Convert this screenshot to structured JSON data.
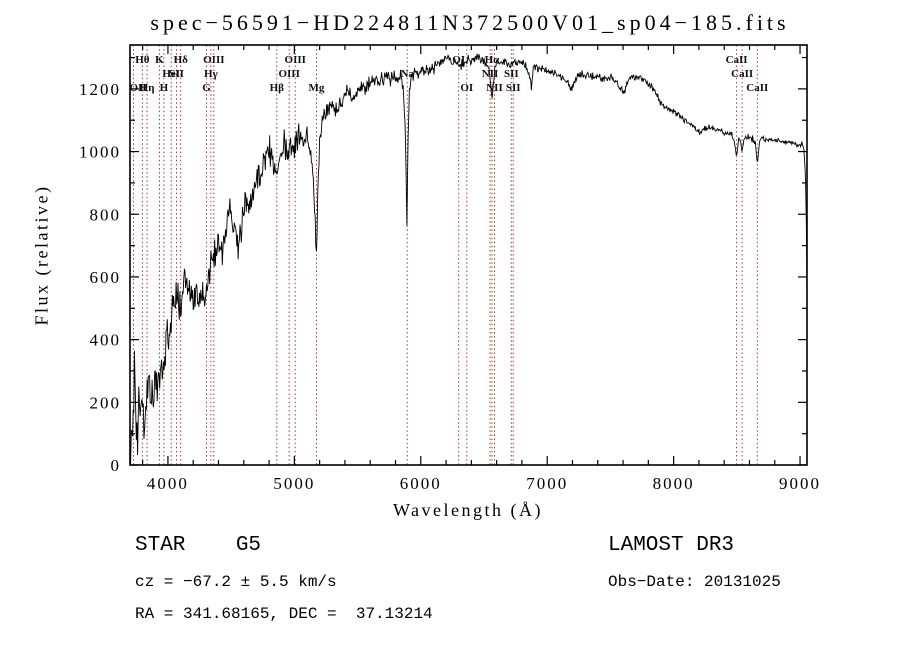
{
  "title": "spec−56591−HD224811N372500V01_sp04−185.fits",
  "footer": {
    "left": {
      "class_line": "STAR    G5",
      "cz_line": "cz = −67.2 ± 5.5 km/s",
      "radec_line": "RA = 341.68165, DEC =  37.13214"
    },
    "right": {
      "survey": "LAMOST DR3",
      "obs_date": "Obs−Date: 20131025"
    }
  },
  "chart_data": {
    "type": "line",
    "title": "spec−56591−HD224811N372500V01_sp04−185.fits",
    "xlabel": "Wavelength (Å)",
    "ylabel": "Flux (relative)",
    "xlim": [
      3700,
      9055
    ],
    "ylim": [
      0,
      1340
    ],
    "xticks": [
      4000,
      5000,
      6000,
      7000,
      8000,
      9000
    ],
    "x_minor_step": 200,
    "yticks": [
      0,
      200,
      400,
      600,
      800,
      1000,
      1200
    ],
    "y_minor_step": 100,
    "grid": false,
    "legend": "none",
    "series_color": "#000000",
    "line_marker_color": "#a03c34",
    "spectral_lines": [
      {
        "wavelength": 3727,
        "label": "OII",
        "row": 3
      },
      {
        "wavelength": 3798,
        "label": "Hθ",
        "row": 1
      },
      {
        "wavelength": 3835,
        "label": "Hη",
        "row": 3
      },
      {
        "wavelength": 3933,
        "label": "K",
        "row": 1
      },
      {
        "wavelength": 3968,
        "label": "H",
        "row": 3
      },
      {
        "wavelength": 4026,
        "label": "HeI",
        "row": 2
      },
      {
        "wavelength": 4068,
        "label": "SII",
        "row": 2
      },
      {
        "wavelength": 4101,
        "label": "Hδ",
        "row": 1
      },
      {
        "wavelength": 4305,
        "label": "G",
        "row": 3
      },
      {
        "wavelength": 4340,
        "label": "Hγ",
        "row": 2
      },
      {
        "wavelength": 4363,
        "label": "OIII",
        "row": 1
      },
      {
        "wavelength": 4861,
        "label": "Hβ",
        "row": 3
      },
      {
        "wavelength": 4959,
        "label": "OIII",
        "row": 2
      },
      {
        "wavelength": 5007,
        "label": "OIII",
        "row": 1
      },
      {
        "wavelength": 5175,
        "label": "Mg",
        "row": 3
      },
      {
        "wavelength": 5893,
        "label": "Na",
        "row": 2
      },
      {
        "wavelength": 6300,
        "label": "OI",
        "row": 1
      },
      {
        "wavelength": 6364,
        "label": "OI",
        "row": 3
      },
      {
        "wavelength": 6548,
        "label": "NII",
        "row": 2
      },
      {
        "wavelength": 6563,
        "label": "Hα",
        "row": 1
      },
      {
        "wavelength": 6583,
        "label": "NII",
        "row": 3
      },
      {
        "wavelength": 6716,
        "label": "SII",
        "row": 2
      },
      {
        "wavelength": 6731,
        "label": "SII",
        "row": 3
      },
      {
        "wavelength": 8498,
        "label": "CaII",
        "row": 1
      },
      {
        "wavelength": 8542,
        "label": "CaII",
        "row": 2
      },
      {
        "wavelength": 8662,
        "label": "CaII",
        "row": 3
      }
    ],
    "spectrum_envelope": [
      [
        3705,
        20
      ],
      [
        3712,
        90
      ],
      [
        3720,
        160
      ],
      [
        3728,
        120
      ],
      [
        3735,
        345
      ],
      [
        3742,
        230
      ],
      [
        3750,
        110
      ],
      [
        3758,
        95
      ],
      [
        3765,
        140
      ],
      [
        3772,
        205
      ],
      [
        3780,
        150
      ],
      [
        3788,
        180
      ],
      [
        3795,
        215
      ],
      [
        3802,
        205
      ],
      [
        3810,
        130
      ],
      [
        3818,
        120
      ],
      [
        3826,
        160
      ],
      [
        3835,
        235
      ],
      [
        3843,
        260
      ],
      [
        3852,
        290
      ],
      [
        3860,
        230
      ],
      [
        3868,
        185
      ],
      [
        3876,
        220
      ],
      [
        3884,
        205
      ],
      [
        3892,
        300
      ],
      [
        3900,
        315
      ],
      [
        3908,
        280
      ],
      [
        3916,
        250
      ],
      [
        3925,
        245
      ],
      [
        3933,
        220
      ],
      [
        3941,
        290
      ],
      [
        3950,
        335
      ],
      [
        3959,
        320
      ],
      [
        3968,
        285
      ],
      [
        3978,
        340
      ],
      [
        3990,
        395
      ],
      [
        4000,
        420
      ],
      [
        4012,
        450
      ],
      [
        4025,
        470
      ],
      [
        4040,
        515
      ],
      [
        4055,
        505
      ],
      [
        4070,
        520
      ],
      [
        4085,
        545
      ],
      [
        4101,
        495
      ],
      [
        4115,
        540
      ],
      [
        4130,
        565
      ],
      [
        4145,
        575
      ],
      [
        4160,
        555
      ],
      [
        4175,
        545
      ],
      [
        4190,
        560
      ],
      [
        4205,
        550
      ],
      [
        4220,
        530
      ],
      [
        4235,
        545
      ],
      [
        4250,
        515
      ],
      [
        4265,
        545
      ],
      [
        4280,
        550
      ],
      [
        4295,
        555
      ],
      [
        4305,
        560
      ],
      [
        4320,
        585
      ],
      [
        4335,
        605
      ],
      [
        4350,
        635
      ],
      [
        4365,
        655
      ],
      [
        4380,
        690
      ],
      [
        4395,
        715
      ],
      [
        4410,
        705
      ],
      [
        4425,
        695
      ],
      [
        4440,
        725
      ],
      [
        4455,
        745
      ],
      [
        4470,
        765
      ],
      [
        4485,
        790
      ],
      [
        4500,
        810
      ],
      [
        4515,
        790
      ],
      [
        4530,
        765
      ],
      [
        4545,
        720
      ],
      [
        4560,
        700
      ],
      [
        4575,
        745
      ],
      [
        4590,
        795
      ],
      [
        4605,
        825
      ],
      [
        4620,
        845
      ],
      [
        4635,
        830
      ],
      [
        4650,
        840
      ],
      [
        4665,
        855
      ],
      [
        4680,
        865
      ],
      [
        4695,
        895
      ],
      [
        4710,
        920
      ],
      [
        4725,
        935
      ],
      [
        4740,
        900
      ],
      [
        4755,
        950
      ],
      [
        4770,
        975
      ],
      [
        4785,
        995
      ],
      [
        4800,
        1005
      ],
      [
        4815,
        985
      ],
      [
        4830,
        960
      ],
      [
        4845,
        945
      ],
      [
        4861,
        920
      ],
      [
        4875,
        975
      ],
      [
        4890,
        1005
      ],
      [
        4905,
        1015
      ],
      [
        4920,
        1030
      ],
      [
        4935,
        1000
      ],
      [
        4950,
        1015
      ],
      [
        4965,
        1005
      ],
      [
        4980,
        995
      ],
      [
        4995,
        1010
      ],
      [
        5010,
        1030
      ],
      [
        5025,
        1045
      ],
      [
        5040,
        1055
      ],
      [
        5055,
        1060
      ],
      [
        5070,
        1040
      ],
      [
        5085,
        1055
      ],
      [
        5100,
        1050
      ],
      [
        5115,
        1030
      ],
      [
        5130,
        995
      ],
      [
        5145,
        930
      ],
      [
        5160,
        820
      ],
      [
        5175,
        700
      ],
      [
        5188,
        880
      ],
      [
        5200,
        1030
      ],
      [
        5215,
        1090
      ],
      [
        5230,
        1105
      ],
      [
        5245,
        1120
      ],
      [
        5260,
        1135
      ],
      [
        5275,
        1120
      ],
      [
        5290,
        1140
      ],
      [
        5310,
        1150
      ],
      [
        5330,
        1135
      ],
      [
        5350,
        1160
      ],
      [
        5370,
        1145
      ],
      [
        5390,
        1170
      ],
      [
        5415,
        1180
      ],
      [
        5440,
        1190
      ],
      [
        5465,
        1175
      ],
      [
        5490,
        1190
      ],
      [
        5515,
        1200
      ],
      [
        5540,
        1210
      ],
      [
        5565,
        1200
      ],
      [
        5590,
        1215
      ],
      [
        5615,
        1225
      ],
      [
        5640,
        1230
      ],
      [
        5665,
        1215
      ],
      [
        5690,
        1235
      ],
      [
        5715,
        1240
      ],
      [
        5740,
        1228
      ],
      [
        5765,
        1235
      ],
      [
        5790,
        1240
      ],
      [
        5815,
        1238
      ],
      [
        5840,
        1232
      ],
      [
        5862,
        1210
      ],
      [
        5878,
        1050
      ],
      [
        5890,
        760
      ],
      [
        5898,
        1010
      ],
      [
        5910,
        1200
      ],
      [
        5925,
        1235
      ],
      [
        5945,
        1245
      ],
      [
        5970,
        1252
      ],
      [
        6000,
        1256
      ],
      [
        6030,
        1262
      ],
      [
        6060,
        1252
      ],
      [
        6090,
        1266
      ],
      [
        6120,
        1272
      ],
      [
        6150,
        1282
      ],
      [
        6180,
        1292
      ],
      [
        6210,
        1302
      ],
      [
        6240,
        1288
      ],
      [
        6270,
        1292
      ],
      [
        6300,
        1272
      ],
      [
        6330,
        1282
      ],
      [
        6360,
        1292
      ],
      [
        6390,
        1282
      ],
      [
        6420,
        1296
      ],
      [
        6450,
        1304
      ],
      [
        6480,
        1292
      ],
      [
        6510,
        1286
      ],
      [
        6540,
        1268
      ],
      [
        6563,
        1165
      ],
      [
        6585,
        1270
      ],
      [
        6610,
        1288
      ],
      [
        6640,
        1280
      ],
      [
        6670,
        1286
      ],
      [
        6700,
        1276
      ],
      [
        6730,
        1282
      ],
      [
        6760,
        1286
      ],
      [
        6790,
        1280
      ],
      [
        6830,
        1276
      ],
      [
        6860,
        1240
      ],
      [
        6875,
        1210
      ],
      [
        6890,
        1262
      ],
      [
        6920,
        1270
      ],
      [
        6950,
        1264
      ],
      [
        6980,
        1260
      ],
      [
        7010,
        1256
      ],
      [
        7040,
        1250
      ],
      [
        7070,
        1244
      ],
      [
        7100,
        1240
      ],
      [
        7130,
        1238
      ],
      [
        7160,
        1218
      ],
      [
        7190,
        1198
      ],
      [
        7220,
        1225
      ],
      [
        7250,
        1242
      ],
      [
        7280,
        1246
      ],
      [
        7310,
        1242
      ],
      [
        7340,
        1238
      ],
      [
        7370,
        1240
      ],
      [
        7400,
        1237
      ],
      [
        7430,
        1234
      ],
      [
        7460,
        1236
      ],
      [
        7490,
        1240
      ],
      [
        7520,
        1232
      ],
      [
        7550,
        1226
      ],
      [
        7580,
        1205
      ],
      [
        7610,
        1190
      ],
      [
        7640,
        1228
      ],
      [
        7670,
        1238
      ],
      [
        7700,
        1240
      ],
      [
        7730,
        1236
      ],
      [
        7760,
        1228
      ],
      [
        7790,
        1220
      ],
      [
        7820,
        1210
      ],
      [
        7850,
        1195
      ],
      [
        7880,
        1168
      ],
      [
        7910,
        1148
      ],
      [
        7940,
        1138
      ],
      [
        7970,
        1132
      ],
      [
        8000,
        1128
      ],
      [
        8030,
        1118
      ],
      [
        8060,
        1110
      ],
      [
        8090,
        1102
      ],
      [
        8120,
        1092
      ],
      [
        8150,
        1085
      ],
      [
        8180,
        1072
      ],
      [
        8210,
        1062
      ],
      [
        8240,
        1076
      ],
      [
        8270,
        1078
      ],
      [
        8300,
        1074
      ],
      [
        8330,
        1070
      ],
      [
        8360,
        1066
      ],
      [
        8390,
        1062
      ],
      [
        8420,
        1060
      ],
      [
        8450,
        1058
      ],
      [
        8475,
        1040
      ],
      [
        8498,
        985
      ],
      [
        8515,
        1045
      ],
      [
        8530,
        1030
      ],
      [
        8542,
        1000
      ],
      [
        8558,
        1042
      ],
      [
        8580,
        1048
      ],
      [
        8605,
        1044
      ],
      [
        8630,
        1042
      ],
      [
        8648,
        1020
      ],
      [
        8662,
        958
      ],
      [
        8680,
        1035
      ],
      [
        8700,
        1042
      ],
      [
        8730,
        1038
      ],
      [
        8760,
        1036
      ],
      [
        8790,
        1034
      ],
      [
        8820,
        1034
      ],
      [
        8850,
        1032
      ],
      [
        8880,
        1032
      ],
      [
        8910,
        1030
      ],
      [
        8940,
        1028
      ],
      [
        8970,
        1026
      ],
      [
        9000,
        1022
      ],
      [
        9015,
        1028
      ],
      [
        9030,
        1005
      ],
      [
        9040,
        948
      ],
      [
        9048,
        840
      ],
      [
        9055,
        540
      ]
    ],
    "noise": {
      "seed": 20131025,
      "sample_step": 5,
      "amplitude_breakpoints": [
        [
          3705,
          58
        ],
        [
          3950,
          52
        ],
        [
          4200,
          48
        ],
        [
          4500,
          44
        ],
        [
          4800,
          40
        ],
        [
          5100,
          33
        ],
        [
          5400,
          26
        ],
        [
          5700,
          20
        ],
        [
          6000,
          15
        ],
        [
          6400,
          12
        ],
        [
          6800,
          10
        ],
        [
          7300,
          9
        ],
        [
          7900,
          9
        ],
        [
          8400,
          8
        ],
        [
          9055,
          7
        ]
      ]
    }
  }
}
